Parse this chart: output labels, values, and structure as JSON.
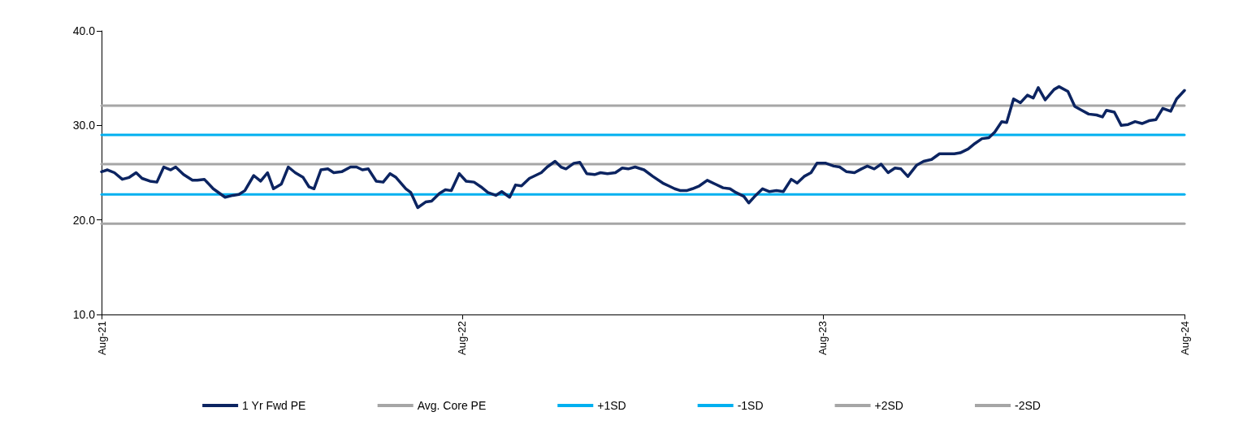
{
  "chart_data": {
    "type": "line",
    "xlim": [
      "2021-08-01",
      "2024-08-01"
    ],
    "xticks": [
      {
        "value": "2021-08-01",
        "label": "Aug-21"
      },
      {
        "value": "2022-08-01",
        "label": "Aug-22"
      },
      {
        "value": "2023-08-01",
        "label": "Aug-23"
      },
      {
        "value": "2024-08-01",
        "label": "Aug-24"
      }
    ],
    "ylim": [
      10,
      40
    ],
    "yticks": [
      {
        "value": 10,
        "label": "10.0"
      },
      {
        "value": 20,
        "label": "20.0"
      },
      {
        "value": 30,
        "label": "30.0"
      },
      {
        "value": 40,
        "label": "40.0"
      }
    ],
    "grid": false,
    "legend": "bottom",
    "marker": "none",
    "line_style": "solid",
    "series": [
      {
        "name": "1 Yr Fwd PE",
        "color": "#0c2461",
        "x": [
          "2021-08-01",
          "2021-08-07",
          "2021-08-14",
          "2021-08-22",
          "2021-08-29",
          "2021-09-05",
          "2021-09-11",
          "2021-09-19",
          "2021-09-26",
          "2021-10-03",
          "2021-10-10",
          "2021-10-15",
          "2021-10-23",
          "2021-11-01",
          "2021-11-06",
          "2021-11-13",
          "2021-11-22",
          "2021-12-04",
          "2021-12-12",
          "2021-12-18",
          "2021-12-24",
          "2022-01-02",
          "2022-01-09",
          "2022-01-16",
          "2022-01-22",
          "2022-01-30",
          "2022-02-06",
          "2022-02-13",
          "2022-02-21",
          "2022-02-27",
          "2022-03-04",
          "2022-03-11",
          "2022-03-18",
          "2022-03-24",
          "2022-04-01",
          "2022-04-10",
          "2022-04-16",
          "2022-04-22",
          "2022-04-28",
          "2022-05-06",
          "2022-05-13",
          "2022-05-20",
          "2022-05-26",
          "2022-06-05",
          "2022-06-10",
          "2022-06-17",
          "2022-06-25",
          "2022-07-01",
          "2022-07-09",
          "2022-07-15",
          "2022-07-21",
          "2022-07-29",
          "2022-08-05",
          "2022-08-13",
          "2022-08-20",
          "2022-08-27",
          "2022-09-04",
          "2022-09-10",
          "2022-09-18",
          "2022-09-24",
          "2022-09-30",
          "2022-10-08",
          "2022-10-14",
          "2022-10-20",
          "2022-10-26",
          "2022-11-03",
          "2022-11-09",
          "2022-11-14",
          "2022-11-22",
          "2022-11-28",
          "2022-12-05",
          "2022-12-13",
          "2022-12-19",
          "2022-12-26",
          "2023-01-03",
          "2023-01-10",
          "2023-01-16",
          "2023-01-23",
          "2023-02-01",
          "2023-02-10",
          "2023-02-20",
          "2023-02-26",
          "2023-03-04",
          "2023-03-10",
          "2023-03-16",
          "2023-03-22",
          "2023-03-29",
          "2023-04-06",
          "2023-04-14",
          "2023-04-22",
          "2023-04-29",
          "2023-05-05",
          "2023-05-13",
          "2023-05-18",
          "2023-05-25",
          "2023-06-01",
          "2023-06-08",
          "2023-06-15",
          "2023-06-22",
          "2023-06-30",
          "2023-07-06",
          "2023-07-13",
          "2023-07-20",
          "2023-07-26",
          "2023-08-04",
          "2023-08-12",
          "2023-08-18",
          "2023-08-25",
          "2023-09-02",
          "2023-09-09",
          "2023-09-15",
          "2023-09-22",
          "2023-09-29",
          "2023-10-06",
          "2023-10-13",
          "2023-10-19",
          "2023-10-26",
          "2023-11-04",
          "2023-11-11",
          "2023-11-19",
          "2023-11-27",
          "2023-12-05",
          "2023-12-12",
          "2023-12-18",
          "2023-12-26",
          "2024-01-02",
          "2024-01-09",
          "2024-01-16",
          "2024-01-22",
          "2024-01-29",
          "2024-02-03",
          "2024-02-10",
          "2024-02-17",
          "2024-02-24",
          "2024-03-01",
          "2024-03-06",
          "2024-03-13",
          "2024-03-22",
          "2024-03-27",
          "2024-04-05",
          "2024-04-12",
          "2024-04-19",
          "2024-04-26",
          "2024-05-04",
          "2024-05-10",
          "2024-05-14",
          "2024-05-22",
          "2024-05-29",
          "2024-06-05",
          "2024-06-12",
          "2024-06-19",
          "2024-06-26",
          "2024-07-03",
          "2024-07-10",
          "2024-07-18",
          "2024-07-24",
          "2024-08-01"
        ],
        "values": [
          25.1,
          25.3,
          25.0,
          24.3,
          24.5,
          25.0,
          24.4,
          24.1,
          24.0,
          25.6,
          25.3,
          25.6,
          24.8,
          24.2,
          24.2,
          24.3,
          23.3,
          22.4,
          22.6,
          22.7,
          23.1,
          24.7,
          24.1,
          25.0,
          23.3,
          23.8,
          25.6,
          25.0,
          24.5,
          23.5,
          23.3,
          25.3,
          25.4,
          25.0,
          25.1,
          25.6,
          25.6,
          25.3,
          25.4,
          24.1,
          24.0,
          24.9,
          24.5,
          23.3,
          22.9,
          21.3,
          21.9,
          22.0,
          22.8,
          23.2,
          23.1,
          24.9,
          24.1,
          24.0,
          23.5,
          22.9,
          22.6,
          23.0,
          22.4,
          23.7,
          23.6,
          24.4,
          24.7,
          25.0,
          25.6,
          26.2,
          25.6,
          25.4,
          26.0,
          26.1,
          24.9,
          24.8,
          25.0,
          24.9,
          25.0,
          25.5,
          25.4,
          25.6,
          25.3,
          24.6,
          23.9,
          23.6,
          23.3,
          23.1,
          23.1,
          23.3,
          23.6,
          24.2,
          23.8,
          23.4,
          23.3,
          22.9,
          22.5,
          21.8,
          22.6,
          23.3,
          23.0,
          23.1,
          23.0,
          24.3,
          23.9,
          24.6,
          25.0,
          26.0,
          26.0,
          25.7,
          25.6,
          25.1,
          25.0,
          25.4,
          25.7,
          25.4,
          25.9,
          25.0,
          25.5,
          25.4,
          24.6,
          25.8,
          26.2,
          26.4,
          27.0,
          27.0,
          27.0,
          27.1,
          27.5,
          28.1,
          28.6,
          28.7,
          29.3,
          30.4,
          30.3,
          32.8,
          32.4,
          33.2,
          32.9,
          34.0,
          32.7,
          33.8,
          34.1,
          33.6,
          32.0,
          31.6,
          31.2,
          31.1,
          30.9,
          31.6,
          31.4,
          30.0,
          30.1,
          30.4,
          30.2,
          30.5,
          30.6,
          31.8,
          31.5,
          32.8,
          33.7
        ]
      },
      {
        "name": "Avg. Core PE",
        "color": "#a6a6a6",
        "x": [
          "2021-08-01",
          "2024-08-01"
        ],
        "values": [
          25.9,
          25.9
        ]
      },
      {
        "name": "+1SD",
        "color": "#00b0f0",
        "x": [
          "2021-08-01",
          "2024-08-01"
        ],
        "values": [
          29.0,
          29.0
        ]
      },
      {
        "name": "-1SD",
        "color": "#00b0f0",
        "x": [
          "2021-08-01",
          "2024-08-01"
        ],
        "values": [
          22.7,
          22.7
        ]
      },
      {
        "name": "+2SD",
        "color": "#a6a6a6",
        "x": [
          "2021-08-01",
          "2024-08-01"
        ],
        "values": [
          32.1,
          32.1
        ]
      },
      {
        "name": "-2SD",
        "color": "#a6a6a6",
        "x": [
          "2021-08-01",
          "2024-08-01"
        ],
        "values": [
          19.6,
          19.6
        ]
      }
    ]
  }
}
